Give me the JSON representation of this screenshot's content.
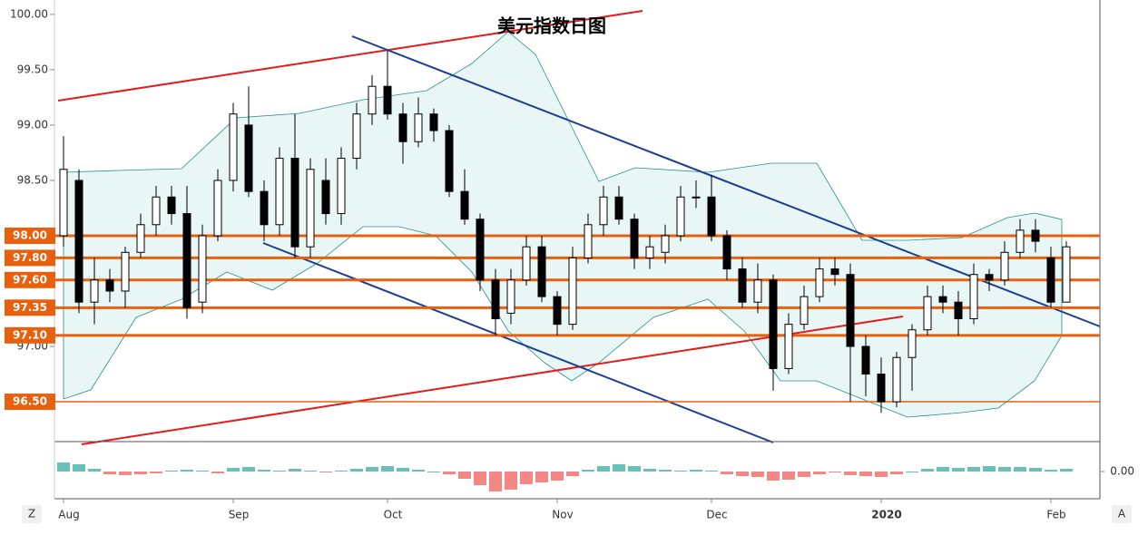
{
  "chart_data": [
    {
      "type": "candlestick",
      "title": "美元指数日图",
      "categories": [
        "Aug",
        null,
        null,
        null,
        null,
        null,
        null,
        null,
        null,
        null,
        null,
        "Sep",
        null,
        null,
        null,
        null,
        null,
        null,
        null,
        null,
        null,
        "Oct",
        null,
        null,
        null,
        null,
        null,
        null,
        null,
        null,
        null,
        null,
        "Nov",
        null,
        null,
        null,
        null,
        null,
        null,
        null,
        null,
        null,
        "Dec",
        null,
        null,
        null,
        null,
        null,
        null,
        null,
        null,
        null,
        null,
        "2020",
        null,
        null,
        null,
        null,
        null,
        null,
        null,
        null,
        null,
        null,
        "Feb",
        null
      ],
      "open": [
        98.0,
        98.5,
        97.4,
        97.6,
        97.5,
        97.85,
        98.1,
        98.35,
        98.2,
        97.4,
        98.0,
        98.5,
        99.0,
        98.4,
        98.1,
        98.7,
        97.9,
        98.5,
        98.2,
        98.7,
        99.1,
        99.35,
        99.1,
        98.85,
        99.1,
        98.95,
        98.4,
        98.15,
        97.6,
        97.3,
        97.6,
        97.9,
        97.45,
        97.2,
        97.8,
        98.1,
        98.35,
        98.15,
        97.8,
        97.85,
        98.0,
        98.35,
        98.35,
        98.0,
        97.7,
        97.4,
        97.6,
        96.8,
        97.2,
        97.45,
        97.7,
        97.65,
        97.0,
        96.75,
        96.5,
        96.9,
        97.15,
        97.45,
        97.4,
        97.25,
        97.65,
        97.6,
        97.85,
        98.05,
        97.8,
        97.4
      ],
      "high": [
        98.9,
        98.6,
        97.8,
        97.7,
        97.9,
        98.2,
        98.45,
        98.45,
        98.45,
        98.1,
        98.6,
        99.2,
        99.35,
        98.5,
        98.8,
        99.1,
        98.7,
        98.7,
        98.8,
        99.2,
        99.45,
        99.67,
        99.2,
        99.25,
        99.15,
        99.0,
        98.6,
        98.2,
        97.7,
        97.7,
        98.0,
        98.0,
        97.5,
        97.9,
        98.2,
        98.45,
        98.45,
        98.2,
        98.0,
        98.1,
        98.45,
        98.5,
        98.55,
        98.05,
        97.8,
        97.75,
        97.65,
        97.3,
        97.55,
        97.8,
        97.8,
        97.75,
        97.1,
        96.9,
        96.95,
        97.2,
        97.55,
        97.55,
        97.5,
        97.75,
        97.7,
        97.95,
        98.15,
        98.15,
        97.9,
        97.95
      ],
      "low": [
        97.9,
        97.3,
        97.2,
        97.4,
        97.35,
        97.8,
        98.0,
        98.1,
        97.25,
        97.3,
        97.95,
        98.4,
        98.35,
        97.95,
        98.0,
        97.8,
        97.8,
        98.1,
        98.1,
        98.6,
        99.0,
        99.05,
        98.65,
        98.8,
        98.85,
        98.35,
        98.1,
        97.5,
        97.1,
        97.2,
        97.55,
        97.4,
        97.1,
        97.15,
        97.75,
        98.0,
        98.1,
        97.7,
        97.7,
        97.75,
        97.95,
        98.25,
        97.95,
        97.6,
        97.35,
        97.3,
        96.6,
        96.75,
        97.15,
        97.4,
        97.55,
        96.5,
        96.55,
        96.4,
        96.45,
        96.6,
        97.1,
        97.3,
        97.1,
        97.2,
        97.5,
        97.55,
        97.8,
        97.85,
        97.35,
        97.4
      ],
      "close": [
        98.6,
        97.4,
        97.6,
        97.5,
        97.85,
        98.1,
        98.35,
        98.2,
        97.35,
        98.0,
        98.5,
        99.1,
        98.4,
        98.1,
        98.7,
        97.9,
        98.6,
        98.2,
        98.7,
        99.1,
        99.35,
        99.1,
        98.85,
        99.1,
        98.95,
        98.4,
        98.15,
        97.6,
        97.25,
        97.6,
        97.9,
        97.45,
        97.2,
        97.8,
        98.1,
        98.35,
        98.15,
        97.8,
        97.9,
        98.0,
        98.35,
        98.35,
        98.0,
        97.7,
        97.4,
        97.6,
        96.8,
        97.2,
        97.45,
        97.7,
        97.65,
        97.0,
        96.75,
        96.5,
        96.9,
        97.15,
        97.45,
        97.4,
        97.25,
        97.65,
        97.6,
        97.85,
        98.05,
        97.95,
        97.4,
        97.9
      ],
      "ylim": [
        96.14,
        100.13
      ],
      "yticks": [
        {
          "value": 97,
          "label": "97.00"
        },
        {
          "value": 98.5,
          "label": "98.50"
        },
        {
          "value": 99,
          "label": "99.00"
        },
        {
          "value": 99.5,
          "label": "99.50"
        },
        {
          "value": 100,
          "label": "100.00"
        }
      ],
      "levels": [
        {
          "value": 98,
          "label": "98.00"
        },
        {
          "value": 97.8,
          "label": "97.80"
        },
        {
          "value": 97.6,
          "label": "97.60"
        },
        {
          "value": 97.35,
          "label": "97.35"
        },
        {
          "value": 97.1,
          "label": "97.10"
        },
        {
          "value": 96.5,
          "label": "96.50"
        }
      ],
      "level_color": "#e8600e"
    },
    {
      "type": "bar",
      "values": [
        0.1,
        0.08,
        0.03,
        -0.03,
        -0.04,
        -0.03,
        -0.02,
        0.01,
        0.02,
        0.01,
        -0.02,
        0.04,
        0.05,
        0.02,
        0.01,
        0.03,
        0.01,
        -0.01,
        0.01,
        0.03,
        0.05,
        0.06,
        0.04,
        0.02,
        0.0,
        -0.03,
        -0.08,
        -0.15,
        -0.22,
        -0.2,
        -0.14,
        -0.12,
        -0.1,
        -0.05,
        0.02,
        0.06,
        0.08,
        0.06,
        0.03,
        0.02,
        0.01,
        0.02,
        0.01,
        -0.03,
        -0.05,
        -0.06,
        -0.1,
        -0.09,
        -0.06,
        -0.03,
        -0.01,
        -0.04,
        -0.05,
        -0.06,
        -0.03,
        0.0,
        0.03,
        0.05,
        0.04,
        0.05,
        0.06,
        0.05,
        0.05,
        0.04,
        0.02,
        0.03
      ],
      "ylim": [
        -0.3,
        0.3
      ],
      "yticks": [
        {
          "value": 0,
          "label": "0.00"
        }
      ],
      "colors": {
        "up": "#26a69a",
        "down": "#ef5350"
      }
    }
  ],
  "ui": {
    "left_button": "Z",
    "right_button": "A"
  }
}
